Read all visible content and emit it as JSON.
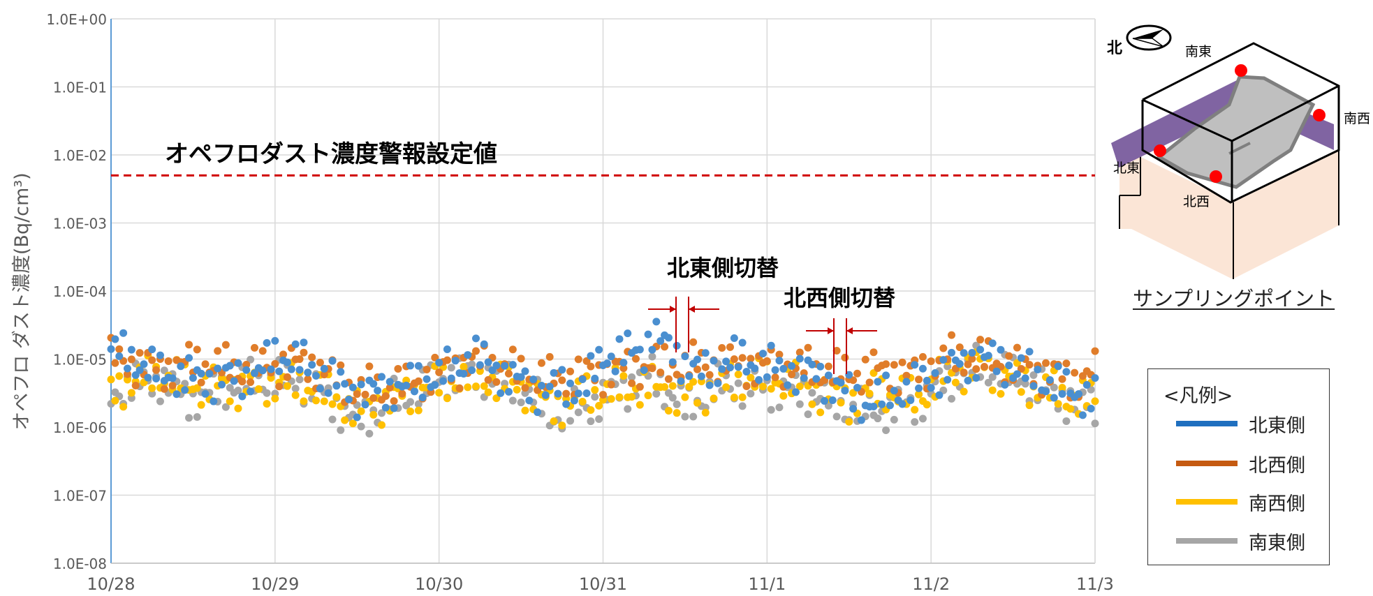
{
  "chart_data": {
    "type": "scatter",
    "ylabel": "オペフロ ダスト濃度(Bq/cm³)",
    "yscale": "log",
    "ylim": [
      1e-08,
      1
    ],
    "ytick_labels": [
      "1.0E-08",
      "1.0E-07",
      "1.0E-06",
      "1.0E-05",
      "1.0E-04",
      "1.0E-03",
      "1.0E-02",
      "1.0E-01",
      "1.0E+00"
    ],
    "x_categories": [
      "10/28",
      "10/29",
      "10/30",
      "10/31",
      "11/1",
      "11/2",
      "11/3"
    ],
    "grid": true,
    "threshold": {
      "label": "オペフロダスト濃度警報設定値",
      "value": 0.005,
      "color": "#d00000"
    },
    "annotations": [
      {
        "label": "北東側切替",
        "x_day": 3.5
      },
      {
        "label": "北西側切替",
        "x_day": 4.5
      }
    ],
    "series": [
      {
        "name": "北東側",
        "color": "#4a8fd0",
        "points": [
          [
            0,
            1.4e-05
          ],
          [
            0.1,
            1.1e-05
          ],
          [
            0.3,
            6e-06
          ],
          [
            0.6,
            5e-06
          ],
          [
            0.9,
            6e-06
          ],
          [
            1.0,
            1.2e-05
          ],
          [
            1.2,
            8e-06
          ],
          [
            1.5,
            3e-06
          ],
          [
            1.8,
            4e-06
          ],
          [
            2.1,
            7e-06
          ],
          [
            2.2,
            1.2e-05
          ],
          [
            2.4,
            6e-06
          ],
          [
            2.6,
            3.5e-06
          ],
          [
            2.9,
            4e-06
          ],
          [
            3.0,
            1.1e-05
          ],
          [
            3.25,
            1.3e-05
          ],
          [
            3.3,
            2.6e-05
          ],
          [
            3.4,
            1.4e-05
          ],
          [
            3.6,
            6e-06
          ],
          [
            3.8,
            1e-05
          ],
          [
            4.1,
            7e-06
          ],
          [
            4.3,
            6e-06
          ],
          [
            4.6,
            2.2e-06
          ],
          [
            4.9,
            4e-06
          ],
          [
            5.1,
            7e-06
          ],
          [
            5.3,
            1.1e-05
          ],
          [
            5.6,
            6e-06
          ],
          [
            5.9,
            3e-06
          ],
          [
            6.0,
            3e-06
          ]
        ]
      },
      {
        "name": "北西側",
        "color": "#e07d2a",
        "points": [
          [
            0,
            1e-05
          ],
          [
            0.1,
            9e-06
          ],
          [
            0.3,
            7e-06
          ],
          [
            0.5,
            9e-06
          ],
          [
            0.8,
            7e-06
          ],
          [
            1.0,
            8e-06
          ],
          [
            1.2,
            9e-06
          ],
          [
            1.5,
            3.5e-06
          ],
          [
            1.8,
            4e-06
          ],
          [
            2.1,
            8e-06
          ],
          [
            2.3,
            9e-06
          ],
          [
            2.5,
            6e-06
          ],
          [
            2.7,
            5e-06
          ],
          [
            2.9,
            6e-06
          ],
          [
            3.1,
            7e-06
          ],
          [
            3.3,
            8e-06
          ],
          [
            3.5,
            8e-06
          ],
          [
            3.7,
            9e-06
          ],
          [
            3.9,
            8e-06
          ],
          [
            4.1,
            8e-06
          ],
          [
            4.3,
            7e-06
          ],
          [
            4.5,
            6e-06
          ],
          [
            4.7,
            7e-06
          ],
          [
            4.9,
            6e-06
          ],
          [
            5.1,
            1.1e-05
          ],
          [
            5.3,
            1e-05
          ],
          [
            5.6,
            7e-06
          ],
          [
            5.9,
            5e-06
          ],
          [
            6.0,
            6.5e-06
          ]
        ]
      },
      {
        "name": "南西側",
        "color": "#ffc000",
        "points": [
          [
            0,
            3e-06
          ],
          [
            0.1,
            4.5e-06
          ],
          [
            0.3,
            6e-06
          ],
          [
            0.5,
            4e-06
          ],
          [
            0.8,
            4e-06
          ],
          [
            1.0,
            4.5e-06
          ],
          [
            1.2,
            4e-06
          ],
          [
            1.5,
            1.8e-06
          ],
          [
            1.8,
            3e-06
          ],
          [
            2.1,
            5e-06
          ],
          [
            2.3,
            5e-06
          ],
          [
            2.5,
            4e-06
          ],
          [
            2.7,
            2e-06
          ],
          [
            2.9,
            3e-06
          ],
          [
            3.1,
            3.5e-06
          ],
          [
            3.3,
            4e-06
          ],
          [
            3.5,
            2.8e-06
          ],
          [
            3.7,
            4e-06
          ],
          [
            3.9,
            5e-06
          ],
          [
            4.1,
            5e-06
          ],
          [
            4.3,
            3.5e-06
          ],
          [
            4.5,
            2.5e-06
          ],
          [
            4.7,
            3.5e-06
          ],
          [
            4.9,
            2.5e-06
          ],
          [
            5.1,
            6e-06
          ],
          [
            5.3,
            8e-06
          ],
          [
            5.6,
            4e-06
          ],
          [
            5.9,
            2.5e-06
          ],
          [
            6.0,
            2.5e-06
          ]
        ]
      },
      {
        "name": "南東側",
        "color": "#a6a6a6",
        "points": [
          [
            0,
            3e-06
          ],
          [
            0.1,
            4e-06
          ],
          [
            0.3,
            5e-06
          ],
          [
            0.5,
            2.5e-06
          ],
          [
            0.8,
            4.5e-06
          ],
          [
            1.0,
            5e-06
          ],
          [
            1.2,
            4.5e-06
          ],
          [
            1.5,
            1.2e-06
          ],
          [
            1.8,
            3e-06
          ],
          [
            2.1,
            6e-06
          ],
          [
            2.3,
            6e-06
          ],
          [
            2.5,
            4e-06
          ],
          [
            2.7,
            1.4e-06
          ],
          [
            2.9,
            2e-06
          ],
          [
            3.1,
            3.5e-06
          ],
          [
            3.3,
            6e-06
          ],
          [
            3.5,
            1.8e-06
          ],
          [
            3.7,
            4e-06
          ],
          [
            3.9,
            4e-06
          ],
          [
            4.1,
            3.5e-06
          ],
          [
            4.3,
            3e-06
          ],
          [
            4.5,
            1.8e-06
          ],
          [
            4.7,
            1.7e-06
          ],
          [
            4.9,
            2.2e-06
          ],
          [
            5.1,
            5e-06
          ],
          [
            5.3,
            8e-06
          ],
          [
            5.6,
            4.5e-06
          ],
          [
            5.9,
            2.2e-06
          ],
          [
            6.0,
            2.2e-06
          ]
        ]
      }
    ]
  },
  "legend": {
    "title": "<凡例>",
    "items": [
      {
        "label": "北東側",
        "color": "#1f6fbf"
      },
      {
        "label": "北西側",
        "color": "#c55a11"
      },
      {
        "label": "南西側",
        "color": "#ffc000"
      },
      {
        "label": "南東側",
        "color": "#a6a6a6"
      }
    ]
  },
  "sampling_diagram": {
    "caption": "サンプリングポイント",
    "north_label": "北",
    "point_labels": [
      "南東",
      "南西",
      "北東",
      "北西"
    ]
  }
}
